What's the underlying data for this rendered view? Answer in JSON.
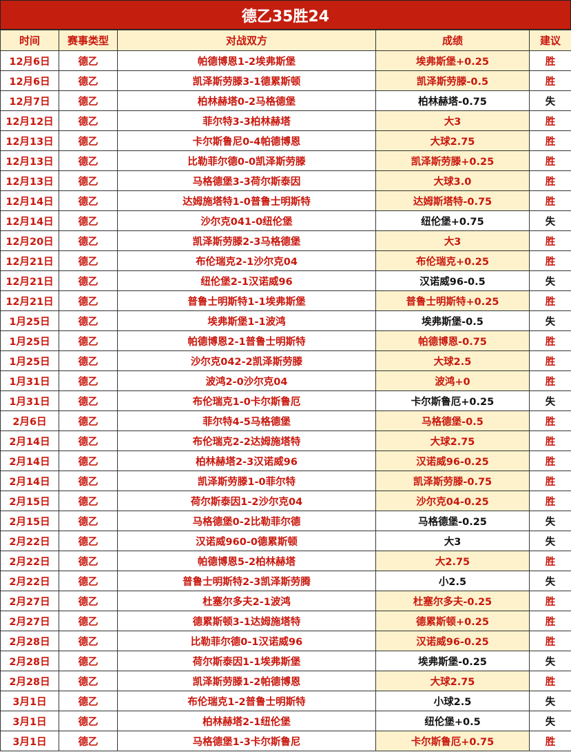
{
  "title": "德乙35胜24",
  "colors": {
    "title_bg": "#c41e0f",
    "highlight": "#fdf2cc",
    "red_text": "#c8170d",
    "loss_text": "#111111"
  },
  "headers": [
    "时间",
    "赛事类型",
    "对战双方",
    "成绩",
    "建议"
  ],
  "rows": [
    [
      "12月6日",
      "德乙",
      "帕德博恩1-2埃弗斯堡",
      "埃弗斯堡+0.25",
      "胜"
    ],
    [
      "12月6日",
      "德乙",
      "凯泽斯劳滕3-1德累斯顿",
      "凯泽斯劳滕-0.5",
      "胜"
    ],
    [
      "12月7日",
      "德乙",
      "柏林赫塔0-2马格德堡",
      "柏林赫塔-0.75",
      "失"
    ],
    [
      "12月12日",
      "德乙",
      "菲尔特3-3柏林赫塔",
      "大3",
      "胜"
    ],
    [
      "12月13日",
      "德乙",
      "卡尔斯鲁尼0-4帕德博恩",
      "大球2.75",
      "胜"
    ],
    [
      "12月13日",
      "德乙",
      "比勒菲尔德0-0凯泽斯劳滕",
      "凯泽斯劳滕+0.25",
      "胜"
    ],
    [
      "12月13日",
      "德乙",
      "马格德堡3-3荷尔斯泰因",
      "大球3.0",
      "胜"
    ],
    [
      "12月14日",
      "德乙",
      "达姆施塔特1-0普鲁士明斯特",
      "达姆斯塔特-0.75",
      "胜"
    ],
    [
      "12月14日",
      "德乙",
      "沙尔克041-0纽伦堡",
      "纽伦堡+0.75",
      "失"
    ],
    [
      "12月20日",
      "德乙",
      "凯泽斯劳滕2-3马格德堡",
      "大3",
      "胜"
    ],
    [
      "12月21日",
      "德乙",
      "布伦瑞克2-1沙尔克04",
      "布伦瑞克+0.25",
      "胜"
    ],
    [
      "12月21日",
      "德乙",
      "纽伦堡2-1汉诺威96",
      "汉诺威96-0.5",
      "失"
    ],
    [
      "12月21日",
      "德乙",
      "普鲁士明斯特1-1埃弗斯堡",
      "普鲁士明斯特+0.25",
      "胜"
    ],
    [
      "1月25日",
      "德乙",
      "埃弗斯堡1-1波鸿",
      "埃弗斯堡-0.5",
      "失"
    ],
    [
      "1月25日",
      "德乙",
      "帕德博恩2-1普鲁士明斯特",
      "帕德博恩-0.75",
      "胜"
    ],
    [
      "1月25日",
      "德乙",
      "沙尔克042-2凯泽斯劳滕",
      "大球2.5",
      "胜"
    ],
    [
      "1月31日",
      "德乙",
      "波鸿2-0沙尔克04",
      "波鸿+0",
      "胜"
    ],
    [
      "1月31日",
      "德乙",
      "布伦瑞克1-0卡尔斯鲁厄",
      "卡尔斯鲁厄+0.25",
      "失"
    ],
    [
      "2月6日",
      "德乙",
      "菲尔特4-5马格德堡",
      "马格德堡-0.5",
      "胜"
    ],
    [
      "2月14日",
      "德乙",
      "布伦瑞克2-2达姆施塔特",
      "大球2.75",
      "胜"
    ],
    [
      "2月14日",
      "德乙",
      "柏林赫塔2-3汉诺威96",
      "汉诺威96-0.25",
      "胜"
    ],
    [
      "2月14日",
      "德乙",
      "凯泽斯劳滕1-0菲尔特",
      "凯泽斯劳滕-0.75",
      "胜"
    ],
    [
      "2月15日",
      "德乙",
      "荷尔斯泰因1-2沙尔克04",
      "沙尔克04-0.25",
      "胜"
    ],
    [
      "2月15日",
      "德乙",
      "马格德堡0-2比勒菲尔德",
      "马格德堡-0.25",
      "失"
    ],
    [
      "2月22日",
      "德乙",
      "汉诺威960-0德累斯顿",
      "大3",
      "失"
    ],
    [
      "2月22日",
      "德乙",
      "帕德博恩5-2柏林赫塔",
      "大2.75",
      "胜"
    ],
    [
      "2月22日",
      "德乙",
      "普鲁士明斯特2-3凯泽斯劳腾",
      "小2.5",
      "失"
    ],
    [
      "2月27日",
      "德乙",
      "杜塞尔多夫2-1波鸿",
      "杜塞尔多夫-0.25",
      "胜"
    ],
    [
      "2月27日",
      "德乙",
      "德累斯顿3-1达姆施塔特",
      "德累斯顿+0.25",
      "胜"
    ],
    [
      "2月28日",
      "德乙",
      "比勒菲尔德0-1汉诺威96",
      "汉诺威96-0.25",
      "胜"
    ],
    [
      "2月28日",
      "德乙",
      "荷尔斯泰因1-1埃弗斯堡",
      "埃弗斯堡-0.25",
      "失"
    ],
    [
      "2月28日",
      "德乙",
      "凯泽斯劳滕1-2帕德博恩",
      "大球2.75",
      "胜"
    ],
    [
      "3月1日",
      "德乙",
      "布伦瑞克1-2普鲁士明斯特",
      "小球2.5",
      "失"
    ],
    [
      "3月1日",
      "德乙",
      "柏林赫塔2-1纽伦堡",
      "纽伦堡+0.5",
      "失"
    ],
    [
      "3月1日",
      "德乙",
      "马格德堡1-3卡尔斯鲁尼",
      "卡尔斯鲁厄+0.75",
      "胜"
    ]
  ]
}
